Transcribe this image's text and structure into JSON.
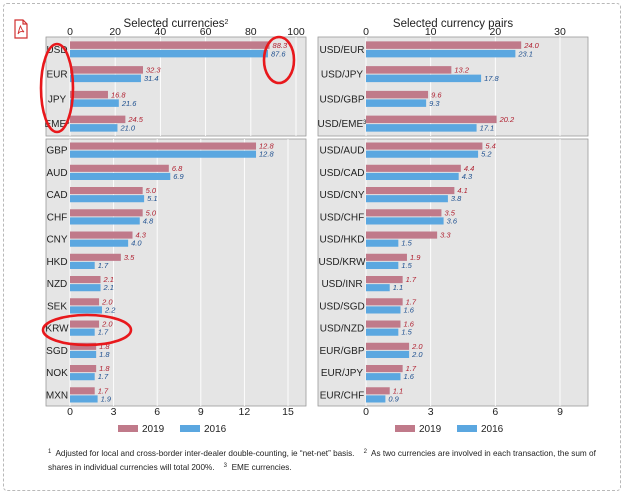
{
  "colors": {
    "series_2019": "#c07a8a",
    "series_2016": "#5ba7e0",
    "panel_bg": "#e5e5e5",
    "value_2019": "#b02030",
    "value_2016": "#1d4f8f",
    "highlight_circle": "#e8181c"
  },
  "icons": {
    "pdf": "pdf-icon"
  },
  "chart_data": [
    {
      "type": "bar",
      "orientation": "horizontal",
      "title": "Selected currencies",
      "title_note": "2",
      "xlim": [
        0,
        100
      ],
      "x_ticks": [
        "0",
        "20",
        "40",
        "60",
        "80",
        "100"
      ],
      "categories": [
        "USD",
        "EUR",
        "JPY",
        "EME"
      ],
      "category_notes": [
        "",
        "",
        "",
        "3"
      ],
      "series": [
        {
          "name": "2019",
          "values": [
            88.3,
            32.3,
            16.8,
            24.5
          ],
          "labels": [
            "88.3",
            "32.3",
            "16.8",
            "24.5"
          ]
        },
        {
          "name": "2016",
          "values": [
            87.6,
            31.4,
            21.6,
            21.0
          ],
          "labels": [
            "87.6",
            "31.4",
            "21.6",
            "21.0"
          ]
        }
      ],
      "highlighted": [
        "USD",
        "EUR",
        "JPY",
        "EME",
        "100"
      ]
    },
    {
      "type": "bar",
      "orientation": "horizontal",
      "title": "Selected currency pairs",
      "xlim": [
        0,
        30
      ],
      "x_ticks": [
        "0",
        "10",
        "20",
        "30"
      ],
      "categories": [
        "USD/EUR",
        "USD/JPY",
        "USD/GBP",
        "USD/EME"
      ],
      "category_notes": [
        "",
        "",
        "",
        "3"
      ],
      "series": [
        {
          "name": "2019",
          "values": [
            24.0,
            13.2,
            9.6,
            20.2
          ],
          "labels": [
            "24.0",
            "13.2",
            "9.6",
            "20.2"
          ]
        },
        {
          "name": "2016",
          "values": [
            23.1,
            17.8,
            9.3,
            17.1
          ],
          "labels": [
            "23.1",
            "17.8",
            "9.3",
            "17.1"
          ]
        }
      ]
    },
    {
      "type": "bar",
      "orientation": "horizontal",
      "xlim": [
        0,
        15
      ],
      "x_ticks": [
        "0",
        "3",
        "6",
        "9",
        "12",
        "15"
      ],
      "categories": [
        "GBP",
        "AUD",
        "CAD",
        "CHF",
        "CNY",
        "HKD",
        "NZD",
        "SEK",
        "KRW",
        "SGD",
        "NOK",
        "MXN"
      ],
      "series": [
        {
          "name": "2019",
          "values": [
            12.8,
            6.8,
            5.0,
            5.0,
            4.3,
            3.5,
            2.1,
            2.0,
            2.0,
            1.8,
            1.8,
            1.7
          ],
          "labels": [
            "12.8",
            "6.8",
            "5.0",
            "5.0",
            "4.3",
            "3.5",
            "2.1",
            "2.0",
            "2.0",
            "1.8",
            "1.8",
            "1.7"
          ]
        },
        {
          "name": "2016",
          "values": [
            12.8,
            6.9,
            5.1,
            4.8,
            4.0,
            1.7,
            2.1,
            2.2,
            1.7,
            1.8,
            1.7,
            1.9
          ],
          "labels": [
            "12.8",
            "6.9",
            "5.1",
            "4.8",
            "4.0",
            "1.7",
            "2.1",
            "2.2",
            "1.7",
            "1.8",
            "1.7",
            "1.9"
          ]
        }
      ],
      "highlighted": [
        "KRW"
      ],
      "legend": {
        "position": "bottom",
        "entries": [
          "2019",
          "2016"
        ]
      }
    },
    {
      "type": "bar",
      "orientation": "horizontal",
      "xlim": [
        0,
        9
      ],
      "x_ticks": [
        "0",
        "3",
        "6",
        "9"
      ],
      "categories": [
        "USD/AUD",
        "USD/CAD",
        "USD/CNY",
        "USD/CHF",
        "USD/HKD",
        "USD/KRW",
        "USD/INR",
        "USD/SGD",
        "USD/NZD",
        "EUR/GBP",
        "EUR/JPY",
        "EUR/CHF"
      ],
      "series": [
        {
          "name": "2019",
          "values": [
            5.4,
            4.4,
            4.1,
            3.5,
            3.3,
            1.9,
            1.7,
            1.7,
            1.6,
            2.0,
            1.7,
            1.1
          ],
          "labels": [
            "5.4",
            "4.4",
            "4.1",
            "3.5",
            "3.3",
            "1.9",
            "1.7",
            "1.7",
            "1.6",
            "2.0",
            "1.7",
            "1.1"
          ]
        },
        {
          "name": "2016",
          "values": [
            5.2,
            4.3,
            3.8,
            3.6,
            1.5,
            1.5,
            1.1,
            1.6,
            1.5,
            2.0,
            1.6,
            0.9
          ],
          "labels": [
            "5.2",
            "4.3",
            "3.8",
            "3.6",
            "1.5",
            "1.5",
            "1.1",
            "1.6",
            "1.5",
            "2.0",
            "1.6",
            "0.9"
          ]
        }
      ],
      "legend": {
        "position": "bottom",
        "entries": [
          "2019",
          "2016"
        ]
      }
    }
  ],
  "footnote": {
    "n1_marker": "1",
    "n1_text": "Adjusted for local and cross-border inter-dealer double-counting, ie “net-net” basis.",
    "n2_marker": "2",
    "n2_text": "As two currencies are involved in each transaction, the sum of shares in individual currencies will total 200%.",
    "n3_marker": "3",
    "n3_text": "EME currencies."
  }
}
